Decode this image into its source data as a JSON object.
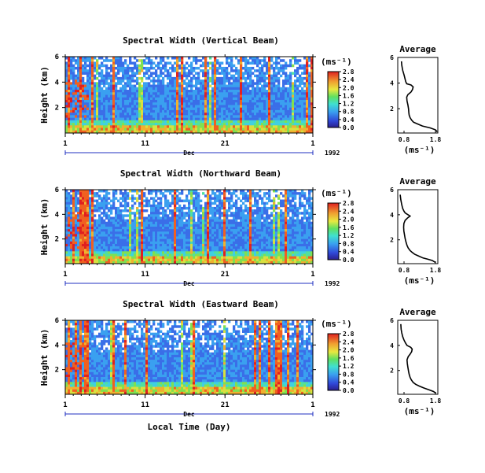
{
  "chart_data": [
    {
      "type": "heatmap",
      "title": "Spectral Width (Vertical Beam)",
      "ylabel": "Height (km)",
      "ylim": [
        0,
        6
      ],
      "yticks": [
        "6",
        "4",
        "2"
      ],
      "xticks": [
        "1",
        "11",
        "21",
        "1"
      ],
      "month": "Dec",
      "year": "1992",
      "colorbar": {
        "unit": "(ms⁻¹)",
        "ticks": [
          "2.8",
          "2.4",
          "2.0",
          "1.6",
          "1.2",
          "0.8",
          "0.4",
          "0.0"
        ],
        "range": [
          0,
          2.8
        ]
      },
      "profile": {
        "title": "Average",
        "xlabel": "(ms⁻¹)",
        "xticks": [
          "0.8",
          "1.8"
        ],
        "yticks": [
          "6",
          "4",
          "2"
        ],
        "xlim": [
          0.5,
          1.8
        ],
        "ylim": [
          0.1,
          6
        ],
        "x": [
          0.62,
          0.63,
          0.66,
          0.71,
          0.74,
          0.76,
          0.79,
          0.93,
          1.0,
          0.98,
          0.93,
          0.83,
          0.79,
          0.8,
          0.83,
          0.85,
          0.86,
          0.87,
          0.9,
          0.95,
          1.01,
          1.15,
          1.3,
          1.55,
          1.72,
          1.78
        ],
        "y": [
          5.7,
          5.4,
          5.0,
          4.6,
          4.3,
          4.1,
          3.95,
          3.85,
          3.7,
          3.5,
          3.3,
          3.1,
          2.9,
          2.6,
          2.3,
          2.0,
          1.7,
          1.5,
          1.3,
          1.1,
          0.95,
          0.8,
          0.65,
          0.5,
          0.35,
          0.2
        ]
      }
    },
    {
      "type": "heatmap",
      "title": "Spectral Width (Northward Beam)",
      "ylabel": "Height (km)",
      "ylim": [
        0,
        6
      ],
      "yticks": [
        "6",
        "4",
        "2"
      ],
      "xticks": [
        "1",
        "11",
        "21",
        "1"
      ],
      "month": "Dec",
      "year": "1992",
      "colorbar": {
        "unit": "(ms⁻¹)",
        "ticks": [
          "2.8",
          "2.4",
          "2.0",
          "1.6",
          "1.2",
          "0.8",
          "0.4",
          "0.0"
        ],
        "range": [
          0,
          2.8
        ]
      },
      "profile": {
        "title": "Average",
        "xlabel": "(ms⁻¹)",
        "xticks": [
          "0.8",
          "1.8"
        ],
        "yticks": [
          "6",
          "4",
          "2"
        ],
        "xlim": [
          0.5,
          1.8
        ],
        "ylim": [
          0.1,
          6
        ],
        "x": [
          0.58,
          0.6,
          0.63,
          0.66,
          0.7,
          0.74,
          0.8,
          0.9,
          0.82,
          0.74,
          0.7,
          0.69,
          0.7,
          0.72,
          0.74,
          0.77,
          0.8,
          0.84,
          0.9,
          0.97,
          1.05,
          1.18,
          1.32,
          1.48,
          1.62,
          1.72
        ],
        "y": [
          5.6,
          5.2,
          4.8,
          4.5,
          4.3,
          4.15,
          4.05,
          3.9,
          3.75,
          3.55,
          3.3,
          3.0,
          2.7,
          2.4,
          2.1,
          1.8,
          1.55,
          1.35,
          1.15,
          1.0,
          0.85,
          0.7,
          0.55,
          0.45,
          0.35,
          0.2
        ]
      }
    },
    {
      "type": "heatmap",
      "title": "Spectral Width (Eastward Beam)",
      "ylabel": "Height (km)",
      "ylim": [
        0,
        6
      ],
      "yticks": [
        "6",
        "4",
        "2"
      ],
      "xticks": [
        "1",
        "11",
        "21",
        "1"
      ],
      "month": "Dec",
      "year": "1992",
      "xlabel": "Local Time (Day)",
      "colorbar": {
        "unit": "(ms⁻¹)",
        "ticks": [
          "2.8",
          "2.4",
          "2.0",
          "1.6",
          "1.2",
          "0.8",
          "0.4",
          "0.0"
        ],
        "range": [
          0,
          2.8
        ]
      },
      "profile": {
        "title": "Average",
        "xlabel": "(ms⁻¹)",
        "xticks": [
          "0.8",
          "1.8"
        ],
        "yticks": [
          "6",
          "4",
          "2"
        ],
        "xlim": [
          0.5,
          1.8
        ],
        "ylim": [
          0.1,
          6
        ],
        "x": [
          0.6,
          0.61,
          0.63,
          0.66,
          0.7,
          0.75,
          0.8,
          0.92,
          0.97,
          0.95,
          0.9,
          0.84,
          0.8,
          0.81,
          0.83,
          0.85,
          0.87,
          0.9,
          0.94,
          1.0,
          1.08,
          1.2,
          1.35,
          1.52,
          1.66,
          1.74
        ],
        "y": [
          5.7,
          5.3,
          5.0,
          4.7,
          4.45,
          4.2,
          4.0,
          3.85,
          3.7,
          3.5,
          3.3,
          3.1,
          2.85,
          2.55,
          2.25,
          1.95,
          1.7,
          1.45,
          1.25,
          1.05,
          0.9,
          0.75,
          0.6,
          0.45,
          0.32,
          0.18
        ]
      }
    }
  ]
}
